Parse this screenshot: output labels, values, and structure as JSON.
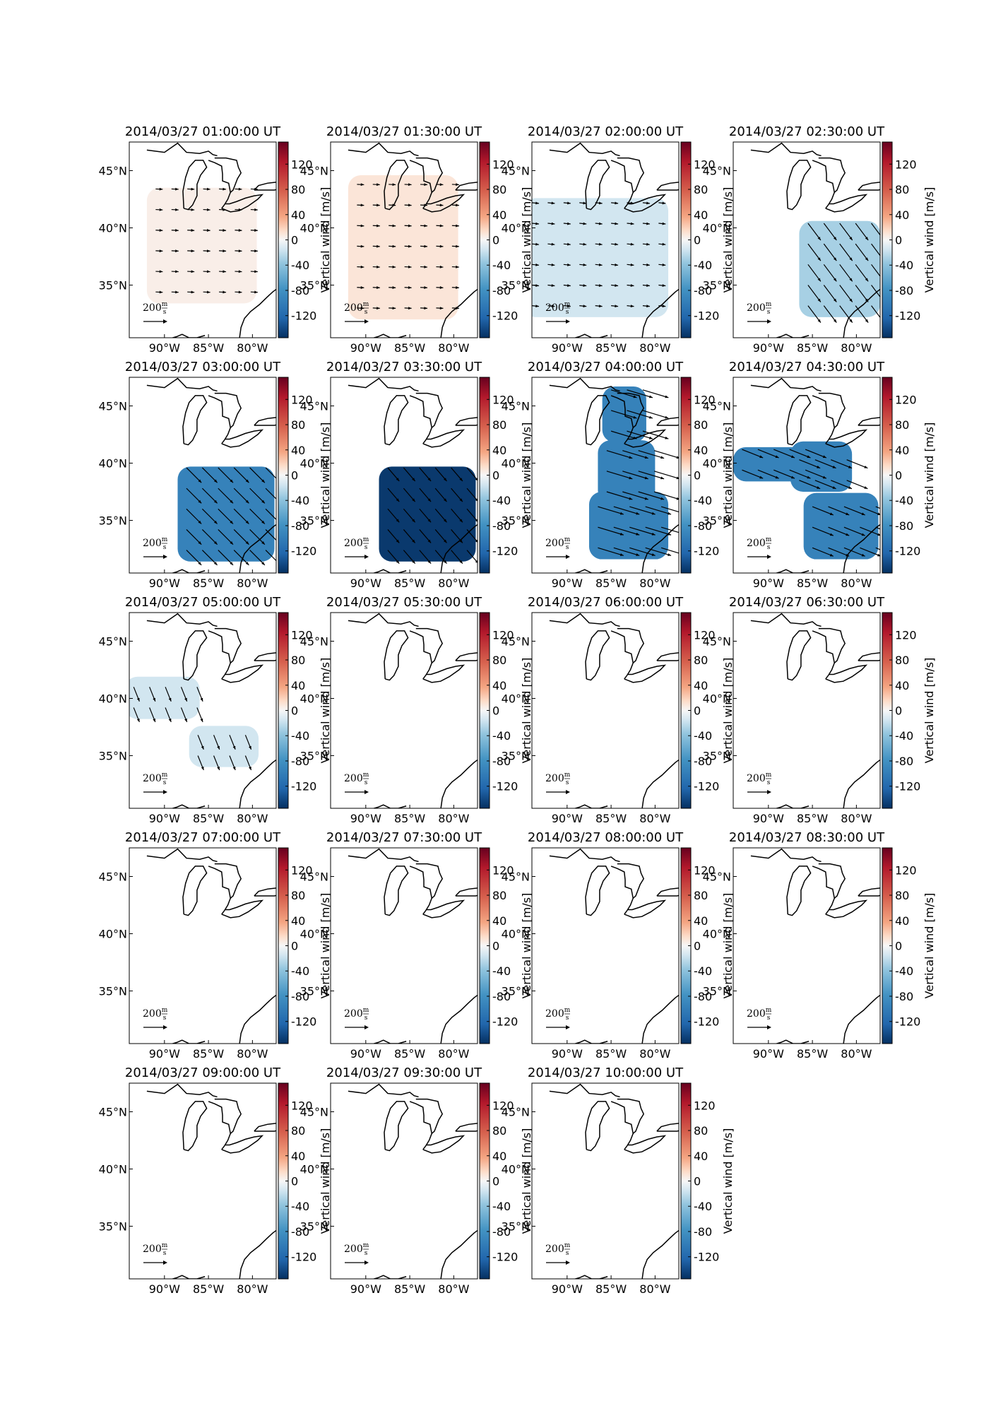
{
  "panels": [
    {
      "title": "2014/03/27 01:00:00 UT",
      "vertical_wind": 5
    },
    {
      "title": "2014/03/27 01:30:00 UT",
      "vertical_wind": 10
    },
    {
      "title": "2014/03/27 02:00:00 UT",
      "vertical_wind": -15
    },
    {
      "title": "2014/03/27 02:30:00 UT",
      "vertical_wind": -30
    },
    {
      "title": "2014/03/27 03:00:00 UT",
      "vertical_wind": -95
    },
    {
      "title": "2014/03/27 03:30:00 UT",
      "vertical_wind": -150
    },
    {
      "title": "2014/03/27 04:00:00 UT",
      "vertical_wind": -95
    },
    {
      "title": "2014/03/27 04:30:00 UT",
      "vertical_wind": -95
    },
    {
      "title": "2014/03/27 05:00:00 UT",
      "vertical_wind": -15
    },
    {
      "title": "2014/03/27 05:30:00 UT",
      "vertical_wind": null
    },
    {
      "title": "2014/03/27 06:00:00 UT",
      "vertical_wind": null
    },
    {
      "title": "2014/03/27 06:30:00 UT",
      "vertical_wind": null
    },
    {
      "title": "2014/03/27 07:00:00 UT",
      "vertical_wind": null
    },
    {
      "title": "2014/03/27 07:30:00 UT",
      "vertical_wind": null
    },
    {
      "title": "2014/03/27 08:00:00 UT",
      "vertical_wind": null
    },
    {
      "title": "2014/03/27 08:30:00 UT",
      "vertical_wind": null
    },
    {
      "title": "2014/03/27 09:00:00 UT",
      "vertical_wind": null
    },
    {
      "title": "2014/03/27 09:30:00 UT",
      "vertical_wind": null
    },
    {
      "title": "2014/03/27 10:00:00 UT",
      "vertical_wind": null
    }
  ],
  "xlim": [
    -94,
    -77.3
  ],
  "ylim": [
    30.4,
    47.5
  ],
  "xticks": [
    {
      "value": -90,
      "label": "90°W"
    },
    {
      "value": -85,
      "label": "85°W"
    },
    {
      "value": -80,
      "label": "80°W"
    }
  ],
  "yticks": [
    {
      "value": 35,
      "label": "35°N"
    },
    {
      "value": 40,
      "label": "40°N"
    },
    {
      "value": 45,
      "label": "45°N"
    }
  ],
  "colorbar": {
    "label": "Vertical wind [m/s]",
    "lim": [
      -155,
      155
    ],
    "ticks": [
      -120,
      -80,
      -40,
      0,
      40,
      80,
      120
    ],
    "colormap": "RdBu_r"
  },
  "arrow_scale": {
    "value": 200,
    "unit_top": "m",
    "unit_bottom": "s"
  }
}
